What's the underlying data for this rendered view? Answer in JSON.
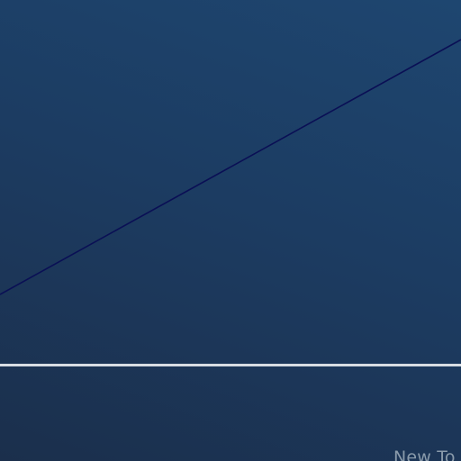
{
  "canvas": {
    "background_colors": [
      "#1e4670",
      "#1c3c62",
      "#1b2f4c"
    ],
    "line_color": "#0a0f55",
    "divider_color": "#d8dde3",
    "label_color": "#8a9bab"
  },
  "footer": {
    "label": "New To"
  }
}
